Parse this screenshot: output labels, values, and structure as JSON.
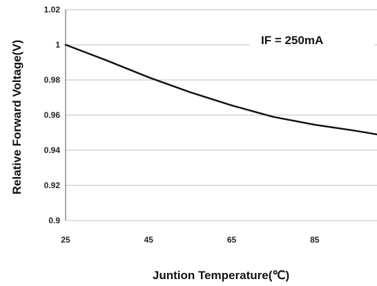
{
  "chart_data": {
    "type": "line",
    "title": "",
    "xlabel": "Juntion Temperature(℃)",
    "ylabel": "Relative Forward Voltage(V)",
    "annotation": "IF = 250mA",
    "xlim": [
      25,
      100
    ],
    "ylim": [
      0.9,
      1.02
    ],
    "x_ticks": [
      25,
      45,
      65,
      85
    ],
    "x_tick_labels": [
      "25",
      "45",
      "65",
      "85"
    ],
    "y_ticks": [
      0.9,
      0.92,
      0.94,
      0.96,
      0.98,
      1.0,
      1.02
    ],
    "y_tick_labels": [
      "0.9",
      "0.92",
      "0.94",
      "0.96",
      "0.98",
      "1",
      "1.02"
    ],
    "grid": "horizontal",
    "series": [
      {
        "x": [
          25,
          35,
          45,
          55,
          65,
          75,
          85,
          95,
          100
        ],
        "y": [
          1.0,
          0.991,
          0.9815,
          0.973,
          0.9655,
          0.959,
          0.9545,
          0.951,
          0.949
        ]
      }
    ],
    "colors": {
      "line": "#111111",
      "grid": "#bdbdbd",
      "axis": "#555555"
    }
  }
}
